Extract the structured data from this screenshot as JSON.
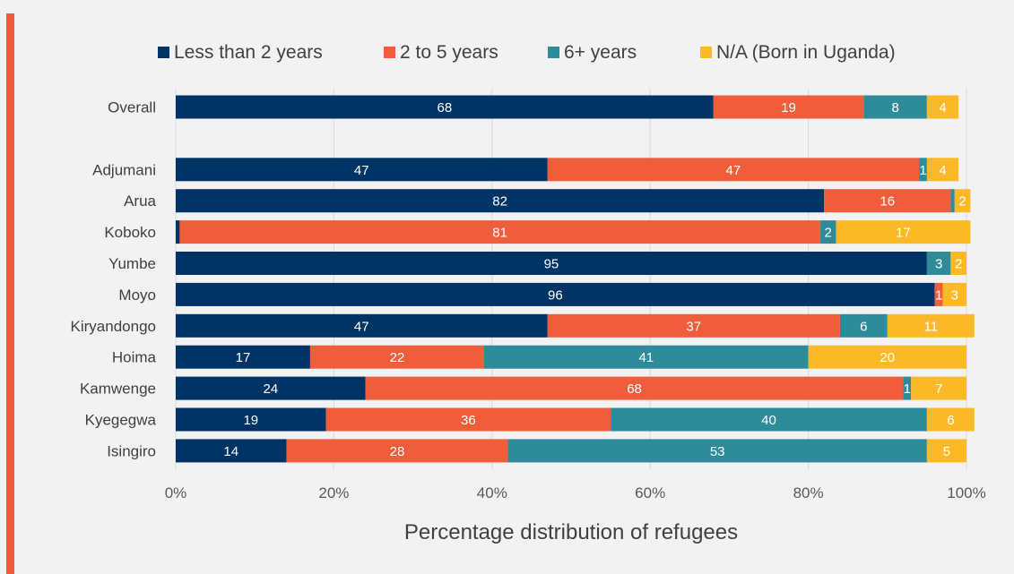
{
  "chart_data": {
    "type": "bar",
    "orientation": "horizontal",
    "stacked": "percent",
    "categories": [
      "Overall",
      "",
      "Adjumani",
      "Arua",
      "Koboko",
      "Yumbe",
      "Moyo",
      "Kiryandongo",
      "Hoima",
      "Kamwenge",
      "Kyegegwa",
      "Isingiro"
    ],
    "series": [
      {
        "name": "Less than 2 years",
        "color": "#003366",
        "values": [
          68,
          null,
          47,
          82,
          0.5,
          95,
          96,
          47,
          17,
          24,
          19,
          14
        ],
        "labels": [
          "68",
          "",
          "47",
          "82",
          "",
          "95",
          "96",
          "47",
          "17",
          "24",
          "19",
          "14"
        ]
      },
      {
        "name": "2 to 5 years",
        "color": "#f05d3b",
        "values": [
          19,
          null,
          47,
          16,
          81,
          0,
          1,
          37,
          22,
          68,
          36,
          28
        ],
        "labels": [
          "19",
          "",
          "47",
          "16",
          "81",
          "",
          "1",
          "37",
          "22",
          "68",
          "36",
          "28"
        ]
      },
      {
        "name": "6+ years",
        "color": "#2e8b9a",
        "values": [
          8,
          null,
          1,
          0.5,
          2,
          3,
          0,
          6,
          41,
          1,
          40,
          53
        ],
        "labels": [
          "8",
          "",
          "1",
          "",
          "2",
          "3",
          "",
          "6",
          "41",
          "1",
          "40",
          "53"
        ]
      },
      {
        "name": "N/A (Born in Uganda)",
        "color": "#fbb928",
        "values": [
          4,
          null,
          4,
          2,
          17,
          2,
          3,
          11,
          20,
          7,
          6,
          5
        ],
        "labels": [
          "4",
          "",
          "4",
          "2",
          "17",
          "2",
          "3",
          "11",
          "20",
          "7",
          "6",
          "5"
        ]
      }
    ],
    "xlabel": "Percentage distribution of refugees",
    "xticks": [
      "0%",
      "20%",
      "40%",
      "60%",
      "80%",
      "100%"
    ],
    "xlim": [
      0,
      100
    ],
    "grid": "vertical",
    "legend": "top"
  }
}
